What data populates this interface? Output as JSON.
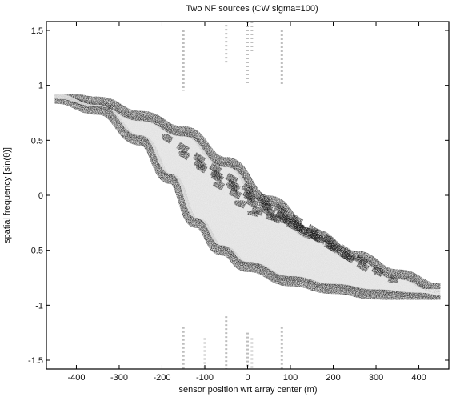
{
  "chart_data": {
    "type": "heatmap",
    "title": "Two NF sources (CW sigma=100)",
    "xlabel": "sensor position wrt array center (m)",
    "ylabel": "spatial frequency [sin(θ)]",
    "xlim": [
      -470,
      470
    ],
    "ylim": [
      -1.58,
      1.58
    ],
    "grid": false,
    "legend": "none",
    "xticks": [
      {
        "value": -400,
        "label": "-400"
      },
      {
        "value": -300,
        "label": "-300"
      },
      {
        "value": -200,
        "label": "-200"
      },
      {
        "value": -100,
        "label": "-100"
      },
      {
        "value": 0,
        "label": "0"
      },
      {
        "value": 100,
        "label": "100"
      },
      {
        "value": 200,
        "label": "200"
      },
      {
        "value": 300,
        "label": "300"
      },
      {
        "value": 400,
        "label": "400"
      }
    ],
    "yticks": [
      {
        "value": 1.5,
        "label": "1.5"
      },
      {
        "value": 1,
        "label": "1"
      },
      {
        "value": 0.5,
        "label": "0.5"
      },
      {
        "value": 0,
        "label": "0"
      },
      {
        "value": -0.5,
        "label": "-0.5"
      },
      {
        "value": -1,
        "label": "-1"
      },
      {
        "value": -1.5,
        "label": "-1.5"
      }
    ],
    "outer_band": {
      "upper": [
        [
          -450,
          0.92
        ],
        [
          -350,
          0.85
        ],
        [
          -250,
          0.72
        ],
        [
          -150,
          0.58
        ],
        [
          -50,
          0.3
        ],
        [
          50,
          -0.05
        ],
        [
          150,
          -0.35
        ],
        [
          250,
          -0.55
        ],
        [
          350,
          -0.72
        ],
        [
          450,
          -0.85
        ]
      ],
      "lower": [
        [
          -450,
          0.88
        ],
        [
          -350,
          0.78
        ],
        [
          -250,
          0.5
        ],
        [
          -180,
          0.15
        ],
        [
          -120,
          -0.25
        ],
        [
          -60,
          -0.5
        ],
        [
          0,
          -0.65
        ],
        [
          100,
          -0.78
        ],
        [
          200,
          -0.85
        ],
        [
          300,
          -0.9
        ],
        [
          400,
          -0.93
        ],
        [
          450,
          -0.95
        ]
      ]
    },
    "interior_bands": [
      {
        "x_start": -200,
        "x_end": 350,
        "y_start": 0.55,
        "y_end": -0.8
      },
      {
        "x_start": -160,
        "x_end": 300,
        "y_start": 0.4,
        "y_end": -0.72
      },
      {
        "x_start": -120,
        "x_end": 260,
        "y_start": 0.28,
        "y_end": -0.62
      },
      {
        "x_start": -80,
        "x_end": 220,
        "y_start": 0.12,
        "y_end": -0.5
      },
      {
        "x_start": -30,
        "x_end": 170,
        "y_start": -0.05,
        "y_end": -0.38
      },
      {
        "x_start": 0,
        "x_end": 120,
        "y_start": -0.14,
        "y_end": -0.26
      }
    ],
    "background_streaks": [
      {
        "x": -150,
        "y_from": 0.95,
        "y_to": 1.5
      },
      {
        "x": -50,
        "y_from": 1.2,
        "y_to": 1.55
      },
      {
        "x": 0,
        "y_from": 1.0,
        "y_to": 1.58
      },
      {
        "x": 10,
        "y_from": 1.3,
        "y_to": 1.58
      },
      {
        "x": 80,
        "y_from": 1.0,
        "y_to": 1.5
      },
      {
        "x": -150,
        "y_from": -1.58,
        "y_to": -1.2
      },
      {
        "x": -100,
        "y_from": -1.58,
        "y_to": -1.3
      },
      {
        "x": -50,
        "y_from": -1.58,
        "y_to": -1.1
      },
      {
        "x": 0,
        "y_from": -1.58,
        "y_to": -1.25
      },
      {
        "x": 10,
        "y_from": -1.58,
        "y_to": -1.3
      },
      {
        "x": 80,
        "y_from": -1.58,
        "y_to": -1.2
      }
    ]
  }
}
